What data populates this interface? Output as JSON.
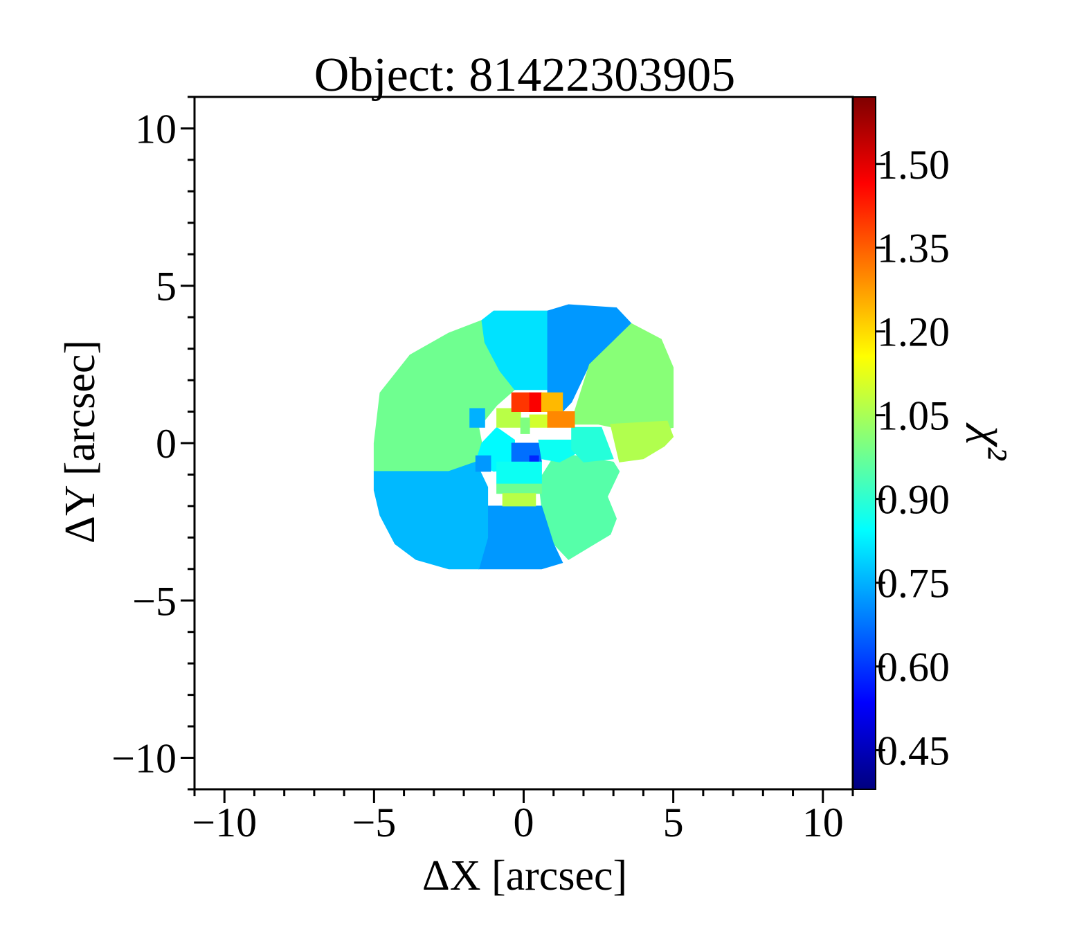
{
  "chart_data": {
    "type": "heatmap",
    "title": "Object: 81422303905",
    "xlabel": "ΔX [arcsec]",
    "ylabel": "ΔY [arcsec]",
    "colorbar_label": "χ²",
    "colormap": "jet",
    "xlim": [
      -11,
      11
    ],
    "ylim": [
      -11,
      11
    ],
    "xticks": [
      -10,
      -5,
      0,
      5,
      10
    ],
    "xtick_labels": [
      "−10",
      "−5",
      "0",
      "5",
      "10"
    ],
    "yticks": [
      10,
      5,
      0,
      -5,
      -10
    ],
    "ytick_labels": [
      "10",
      "5",
      "0",
      "−5",
      "−10"
    ],
    "clim": [
      0.38,
      1.62
    ],
    "cbar_ticks": [
      1.5,
      1.35,
      1.2,
      1.05,
      0.9,
      0.75,
      0.6,
      0.45
    ],
    "cbar_tick_labels": [
      "1.50",
      "1.35",
      "1.20",
      "1.05",
      "0.90",
      "0.75",
      "0.60",
      "0.45"
    ],
    "grid": false,
    "bins": [
      {
        "name": "upper-left sector",
        "polygon": [
          [
            -5.0,
            0.0
          ],
          [
            -4.8,
            1.6
          ],
          [
            -3.8,
            2.8
          ],
          [
            -2.5,
            3.5
          ],
          [
            -1.4,
            3.9
          ],
          [
            -1.3,
            3.2
          ],
          [
            -0.8,
            2.3
          ],
          [
            -0.3,
            1.7
          ],
          [
            -0.9,
            1.2
          ],
          [
            -1.5,
            0.5
          ],
          [
            -1.4,
            0.0
          ],
          [
            -1.6,
            -0.6
          ],
          [
            -2.5,
            -0.9
          ],
          [
            -5.0,
            -0.9
          ]
        ],
        "value": 0.98
      },
      {
        "name": "upper-middle sector",
        "polygon": [
          [
            -1.4,
            3.9
          ],
          [
            -1.0,
            4.2
          ],
          [
            0.8,
            4.2
          ],
          [
            0.8,
            1.7
          ],
          [
            -0.3,
            1.7
          ],
          [
            -0.8,
            2.3
          ],
          [
            -1.3,
            3.2
          ]
        ],
        "value": 0.81
      },
      {
        "name": "upper-right sector",
        "polygon": [
          [
            0.8,
            4.2
          ],
          [
            1.5,
            4.4
          ],
          [
            3.1,
            4.3
          ],
          [
            3.6,
            3.8
          ],
          [
            2.2,
            2.5
          ],
          [
            1.6,
            1.3
          ],
          [
            1.3,
            1.0
          ],
          [
            0.8,
            1.1
          ]
        ],
        "value": 0.72
      },
      {
        "name": "right sector",
        "polygon": [
          [
            3.6,
            3.8
          ],
          [
            4.6,
            3.3
          ],
          [
            5.0,
            2.4
          ],
          [
            5.0,
            0.5
          ],
          [
            4.0,
            0.3
          ],
          [
            2.5,
            0.6
          ],
          [
            1.7,
            0.6
          ],
          [
            1.7,
            1.0
          ],
          [
            2.2,
            2.5
          ]
        ],
        "value": 1.01
      },
      {
        "name": "right outer sector",
        "polygon": [
          [
            2.9,
            0.6
          ],
          [
            4.8,
            0.7
          ],
          [
            5.0,
            0.2
          ],
          [
            4.7,
            -0.1
          ],
          [
            4.0,
            -0.5
          ],
          [
            3.2,
            -0.6
          ]
        ],
        "value": 1.06
      },
      {
        "name": "lower-right sector",
        "polygon": [
          [
            1.1,
            -0.3
          ],
          [
            3.0,
            -0.6
          ],
          [
            3.2,
            -0.9
          ],
          [
            2.8,
            -1.7
          ],
          [
            3.1,
            -2.4
          ],
          [
            2.9,
            -2.9
          ],
          [
            2.2,
            -3.3
          ],
          [
            1.5,
            -3.7
          ],
          [
            1.0,
            -3.2
          ],
          [
            0.6,
            -2.0
          ],
          [
            0.5,
            -1.2
          ]
        ],
        "value": 0.95
      },
      {
        "name": "lower-middle sector",
        "polygon": [
          [
            -1.2,
            -2.0
          ],
          [
            0.6,
            -2.0
          ],
          [
            1.0,
            -3.2
          ],
          [
            1.3,
            -3.8
          ],
          [
            0.6,
            -4.0
          ],
          [
            -1.5,
            -4.0
          ],
          [
            -1.2,
            -3.0
          ]
        ],
        "value": 0.72
      },
      {
        "name": "lower-left sector",
        "polygon": [
          [
            -5.0,
            -0.9
          ],
          [
            -2.5,
            -0.9
          ],
          [
            -1.6,
            -0.6
          ],
          [
            -1.2,
            -1.4
          ],
          [
            -1.2,
            -3.0
          ],
          [
            -1.5,
            -4.0
          ],
          [
            -2.5,
            -4.0
          ],
          [
            -3.6,
            -3.7
          ],
          [
            -4.3,
            -3.2
          ],
          [
            -4.8,
            -2.3
          ],
          [
            -5.0,
            -1.5
          ]
        ],
        "value": 0.76
      },
      {
        "name": "core left cyan",
        "polygon": [
          [
            -1.4,
            0.0
          ],
          [
            -0.9,
            0.5
          ],
          [
            -0.3,
            0.1
          ],
          [
            -0.3,
            -0.8
          ],
          [
            -1.0,
            -0.9
          ],
          [
            -1.6,
            -0.6
          ]
        ],
        "value": 0.84
      },
      {
        "name": "core blue",
        "polygon": [
          [
            -0.4,
            0.0
          ],
          [
            0.5,
            0.0
          ],
          [
            0.6,
            -0.6
          ],
          [
            0.3,
            -0.7
          ],
          [
            -0.4,
            -0.7
          ]
        ],
        "value": 0.67
      },
      {
        "name": "core deep blue",
        "polygon": [
          [
            0.2,
            -0.4
          ],
          [
            0.5,
            -0.4
          ],
          [
            0.5,
            -0.6
          ],
          [
            0.2,
            -0.6
          ]
        ],
        "value": 0.58
      },
      {
        "name": "core center cyan",
        "polygon": [
          [
            0.5,
            0.1
          ],
          [
            1.6,
            0.1
          ],
          [
            1.8,
            -0.3
          ],
          [
            1.2,
            -0.6
          ],
          [
            0.6,
            -0.5
          ]
        ],
        "value": 0.86
      },
      {
        "name": "core right cyan",
        "polygon": [
          [
            1.6,
            0.5
          ],
          [
            2.6,
            0.5
          ],
          [
            3.0,
            -0.5
          ],
          [
            2.0,
            -0.6
          ],
          [
            1.6,
            -0.2
          ]
        ],
        "value": 0.89
      },
      {
        "name": "core lower cyan",
        "polygon": [
          [
            -0.9,
            -0.6
          ],
          [
            0.6,
            -0.6
          ],
          [
            0.6,
            -1.3
          ],
          [
            -0.9,
            -1.3
          ]
        ],
        "value": 0.86
      },
      {
        "name": "core lower green",
        "polygon": [
          [
            -0.9,
            -1.3
          ],
          [
            0.6,
            -1.3
          ],
          [
            0.6,
            -1.6
          ],
          [
            -0.9,
            -1.6
          ]
        ],
        "value": 0.98
      },
      {
        "name": "core bottom lime",
        "polygon": [
          [
            -0.7,
            -1.6
          ],
          [
            0.4,
            -1.6
          ],
          [
            0.4,
            -2.0
          ],
          [
            -0.7,
            -2.0
          ]
        ],
        "value": 1.07
      },
      {
        "name": "left isolated bin",
        "polygon": [
          [
            -1.8,
            1.1
          ],
          [
            -1.3,
            1.1
          ],
          [
            -1.3,
            0.5
          ],
          [
            -1.8,
            0.5
          ]
        ],
        "value": 0.75
      },
      {
        "name": "inner left lime",
        "polygon": [
          [
            -0.9,
            1.1
          ],
          [
            -0.1,
            1.1
          ],
          [
            -0.1,
            0.5
          ],
          [
            -0.9,
            0.5
          ]
        ],
        "value": 1.07
      },
      {
        "name": "inner right lime",
        "polygon": [
          [
            0.2,
            0.9
          ],
          [
            0.8,
            0.9
          ],
          [
            0.8,
            0.5
          ],
          [
            0.2,
            0.5
          ]
        ],
        "value": 1.1
      },
      {
        "name": "inner mixed green",
        "polygon": [
          [
            -0.1,
            0.8
          ],
          [
            0.2,
            0.8
          ],
          [
            0.2,
            0.3
          ],
          [
            -0.1,
            0.3
          ]
        ],
        "value": 1.0
      },
      {
        "name": "nucleus orange left",
        "polygon": [
          [
            -0.4,
            1.6
          ],
          [
            0.2,
            1.6
          ],
          [
            0.2,
            1.0
          ],
          [
            -0.4,
            1.0
          ]
        ],
        "value": 1.4
      },
      {
        "name": "nucleus red",
        "polygon": [
          [
            0.2,
            1.6
          ],
          [
            0.6,
            1.6
          ],
          [
            0.6,
            1.0
          ],
          [
            0.2,
            1.0
          ]
        ],
        "value": 1.47
      },
      {
        "name": "nucleus yellow",
        "polygon": [
          [
            0.6,
            1.6
          ],
          [
            1.3,
            1.6
          ],
          [
            1.3,
            1.0
          ],
          [
            0.6,
            1.0
          ]
        ],
        "value": 1.24
      },
      {
        "name": "nucleus lower orange",
        "polygon": [
          [
            0.8,
            1.0
          ],
          [
            1.7,
            1.0
          ],
          [
            1.7,
            0.5
          ],
          [
            0.8,
            0.5
          ]
        ],
        "value": 1.3
      },
      {
        "name": "lower left blue bin",
        "polygon": [
          [
            -1.6,
            -0.4
          ],
          [
            -1.1,
            -0.4
          ],
          [
            -1.1,
            -0.9
          ],
          [
            -1.6,
            -0.9
          ]
        ],
        "value": 0.72
      }
    ]
  }
}
